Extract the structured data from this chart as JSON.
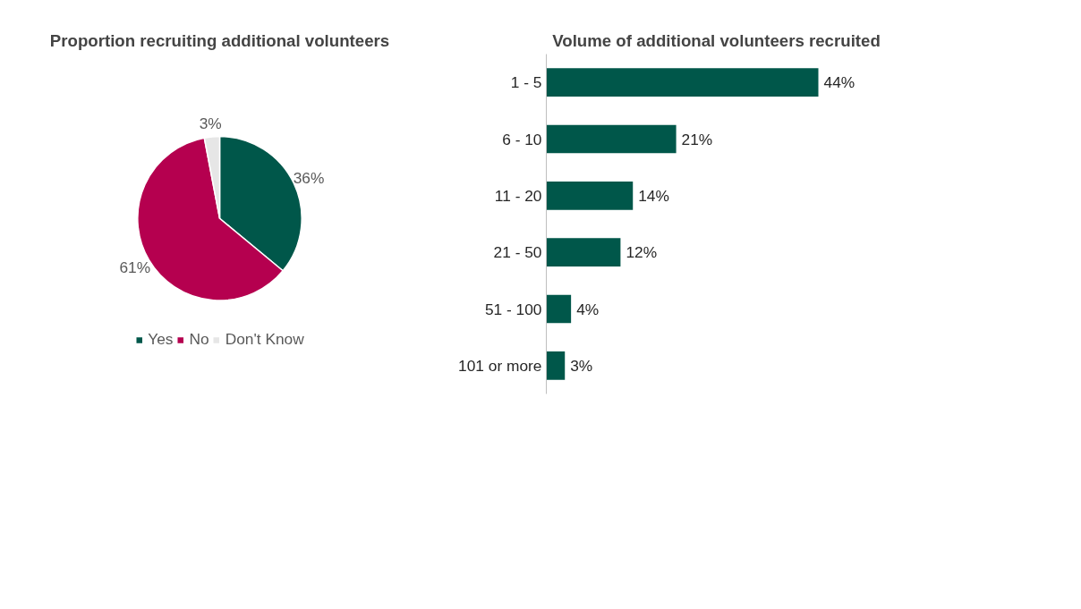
{
  "chart_data": [
    {
      "type": "pie",
      "title": "Proportion recruiting additional volunteers",
      "categories": [
        "Yes",
        "No",
        "Don't Know"
      ],
      "values": [
        36,
        61,
        3
      ],
      "colors": [
        "#00574a",
        "#b5004f",
        "#e6e6e6"
      ],
      "value_labels": [
        "36%",
        "61%",
        "3%"
      ],
      "legend": "bottom"
    },
    {
      "type": "bar",
      "orientation": "horizontal",
      "title": "Volume of additional volunteers recruited",
      "categories": [
        "1 - 5",
        "6 - 10",
        "11 - 20",
        "21 - 50",
        "51 - 100",
        "101 or more"
      ],
      "values": [
        44,
        21,
        14,
        12,
        4,
        3
      ],
      "value_labels": [
        "44%",
        "21%",
        "14%",
        "12%",
        "4%",
        "3%"
      ],
      "color": "#00574a",
      "tick_labels": "y"
    }
  ]
}
